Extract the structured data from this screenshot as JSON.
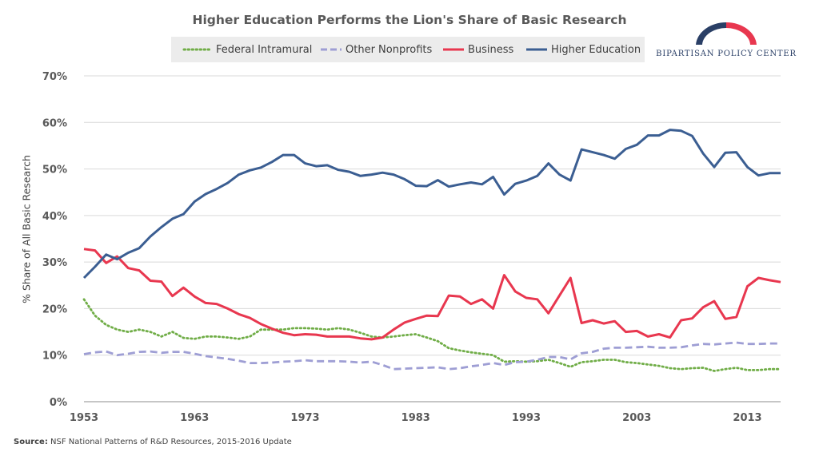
{
  "chart_data": {
    "type": "line",
    "title": "Higher Education Performs the Lion's Share of Basic Research",
    "ylabel": "% Share of All Basic Research",
    "xlabel": "",
    "ylim": [
      0,
      70
    ],
    "yticks": [
      "0%",
      "10%",
      "20%",
      "30%",
      "40%",
      "50%",
      "60%",
      "70%"
    ],
    "xticks": [
      "1953",
      "1963",
      "1973",
      "1983",
      "1993",
      "2003",
      "2013"
    ],
    "grid": true,
    "legend_position": "top",
    "x": [
      1953,
      1954,
      1955,
      1956,
      1957,
      1958,
      1959,
      1960,
      1961,
      1962,
      1963,
      1964,
      1965,
      1966,
      1967,
      1968,
      1969,
      1970,
      1971,
      1972,
      1973,
      1974,
      1975,
      1976,
      1977,
      1978,
      1979,
      1980,
      1981,
      1982,
      1983,
      1984,
      1985,
      1986,
      1987,
      1988,
      1989,
      1990,
      1991,
      1992,
      1993,
      1994,
      1995,
      1996,
      1997,
      1998,
      1999,
      2000,
      2001,
      2002,
      2003,
      2004,
      2005,
      2006,
      2007,
      2008,
      2009,
      2010,
      2011,
      2012,
      2013,
      2014,
      2015,
      2016
    ],
    "series": [
      {
        "name": "Federal Intramural",
        "color": "#70ad47",
        "style": "dotted",
        "values": [
          22,
          18.5,
          16.5,
          15.5,
          15,
          15.5,
          15,
          14,
          15,
          13.7,
          13.5,
          14,
          14,
          13.8,
          13.5,
          14,
          15.5,
          15.5,
          15.5,
          15.8,
          15.8,
          15.7,
          15.5,
          15.8,
          15.5,
          14.8,
          14,
          13.8,
          14,
          14.3,
          14.5,
          13.8,
          13,
          11.5,
          11,
          10.6,
          10.3,
          10,
          8.6,
          8.7,
          8.6,
          8.7,
          9,
          8.3,
          7.5,
          8.5,
          8.7,
          9,
          9,
          8.5,
          8.3,
          8,
          7.7,
          7.2,
          7,
          7.2,
          7.3,
          6.6,
          7,
          7.3,
          6.8,
          6.8,
          7,
          7
        ]
      },
      {
        "name": "Other Nonprofits",
        "color": "#9e9ed4",
        "style": "dashed",
        "values": [
          10.2,
          10.6,
          10.8,
          10,
          10.3,
          10.7,
          10.8,
          10.5,
          10.7,
          10.7,
          10.3,
          9.8,
          9.5,
          9.2,
          8.8,
          8.3,
          8.3,
          8.4,
          8.6,
          8.7,
          8.9,
          8.7,
          8.7,
          8.7,
          8.6,
          8.4,
          8.6,
          7.9,
          7,
          7.1,
          7.2,
          7.3,
          7.4,
          7,
          7.2,
          7.6,
          7.9,
          8.3,
          7.9,
          8.5,
          8.6,
          9,
          9.6,
          9.6,
          9.1,
          10.4,
          10.7,
          11.4,
          11.6,
          11.6,
          11.7,
          11.8,
          11.6,
          11.6,
          11.7,
          12.1,
          12.4,
          12.3,
          12.5,
          12.7,
          12.4,
          12.4,
          12.5,
          12.5
        ]
      },
      {
        "name": "Business",
        "color": "#e8374f",
        "style": "solid",
        "values": [
          32.8,
          32.5,
          29.8,
          31.2,
          28.7,
          28.2,
          26,
          25.8,
          22.7,
          24.5,
          22.6,
          21.2,
          21,
          20,
          18.8,
          18,
          16.7,
          15.7,
          14.8,
          14.3,
          14.5,
          14.4,
          14,
          14,
          14,
          13.6,
          13.4,
          13.8,
          15.5,
          17,
          17.8,
          18.5,
          18.4,
          22.8,
          22.6,
          21,
          22,
          20,
          27.2,
          23.7,
          22.3,
          22,
          19,
          22.8,
          26.6,
          16.9,
          17.5,
          16.8,
          17.3,
          15,
          15.2,
          14,
          14.5,
          13.8,
          17.5,
          17.9,
          20.3,
          21.6,
          17.8,
          18.2,
          24.8,
          26.6,
          26.1,
          25.7
        ]
      },
      {
        "name": "Higher Education",
        "color": "#3b5e92",
        "style": "solid",
        "values": [
          26.6,
          29,
          31.6,
          30.6,
          32,
          33,
          35.5,
          37.5,
          39.3,
          40.3,
          43,
          44.6,
          45.7,
          47,
          48.8,
          49.7,
          50.3,
          51.5,
          53,
          53,
          51.2,
          50.6,
          50.8,
          49.8,
          49.4,
          48.5,
          48.8,
          49.2,
          48.8,
          47.8,
          46.4,
          46.3,
          47.6,
          46.2,
          46.7,
          47.1,
          46.7,
          48.3,
          44.5,
          46.8,
          47.5,
          48.5,
          51.2,
          48.8,
          47.5,
          54.2,
          53.6,
          53,
          52.2,
          54.3,
          55.2,
          57.2,
          57.2,
          58.4,
          58.2,
          57.1,
          53.3,
          50.4,
          53.5,
          53.6,
          50.4,
          48.6,
          49.1,
          49.1
        ]
      }
    ]
  },
  "logo": {
    "text": "BIPARTISAN POLICY CENTER"
  },
  "source": {
    "label": "Source:",
    "text": "NSF National Patterns of R&D Resources, 2015-2016 Update"
  }
}
